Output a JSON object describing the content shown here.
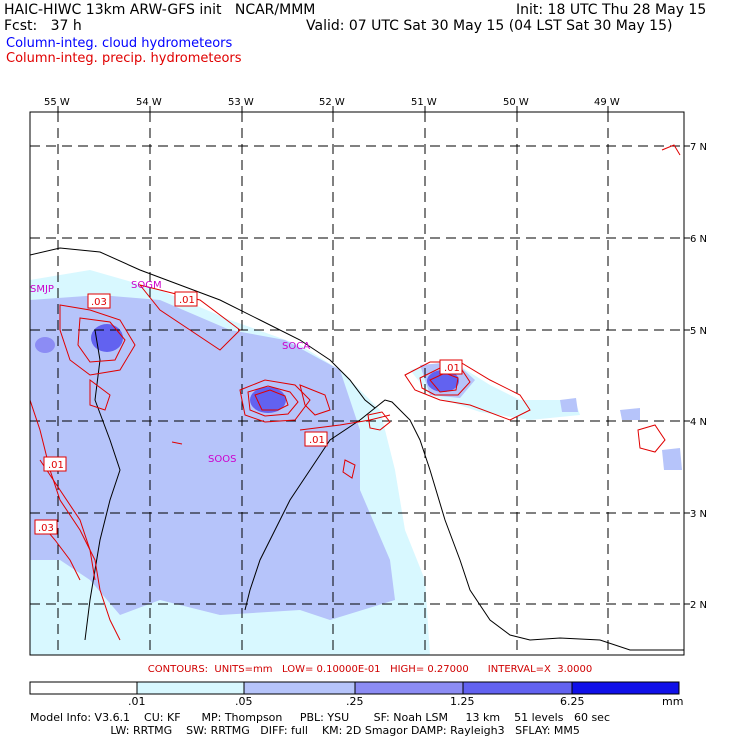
{
  "header": {
    "line1_left": "HAIC-HIWC 13km ARW-GFS init   NCAR/MMM",
    "line1_right": "Init: 18 UTC Thu 28 May 15",
    "line2_left": "Fcst:   37 h",
    "line2_right": "Valid: 07 UTC Sat 30 May 15 (04 LST Sat 30 May 15)",
    "field1": "Column-integ. cloud hydrometeors",
    "field2": "Column-integ. precip. hydrometeors",
    "field1_color": "#0000ff",
    "field2_color": "#e00000"
  },
  "map": {
    "lon_labels": [
      "55 W",
      "54 W",
      "53 W",
      "52 W",
      "51 W",
      "50 W",
      "49 W"
    ],
    "lat_labels": [
      "7 N",
      "6 N",
      "5 N",
      "4 N",
      "3 N",
      "2 N"
    ],
    "stations": [
      "SMJP",
      "SOGM",
      "SOCA",
      "SOOS"
    ],
    "contour_labels": [
      ".03",
      ".01",
      ".01",
      ".01",
      ".01",
      ".03"
    ]
  },
  "legend": {
    "contours": "CONTOURS:  UNITS=mm   LOW= 0.10000E-01   HIGH= 0.27000      INTERVAL=X  3.0000",
    "tick_labels": [
      ".01",
      ".05",
      ".25",
      "1.25",
      "6.25"
    ],
    "units": "mm",
    "colors": [
      "#ffffff",
      "#d8f8ff",
      "#b6c4fa",
      "#8c8cf4",
      "#6262f0",
      "#3838ec",
      "#1010e8"
    ]
  },
  "footer": {
    "line1": "Model Info: V3.6.1    CU: KF      MP: Thompson     PBL: YSU       SF: Noah LSM     13 km    51 levels   60 sec",
    "line2": "                       LW: RRTMG    SW: RRTMG   DIFF: full    KM: 2D Smagor DAMP: Rayleigh3   SFLAY: MM5"
  }
}
